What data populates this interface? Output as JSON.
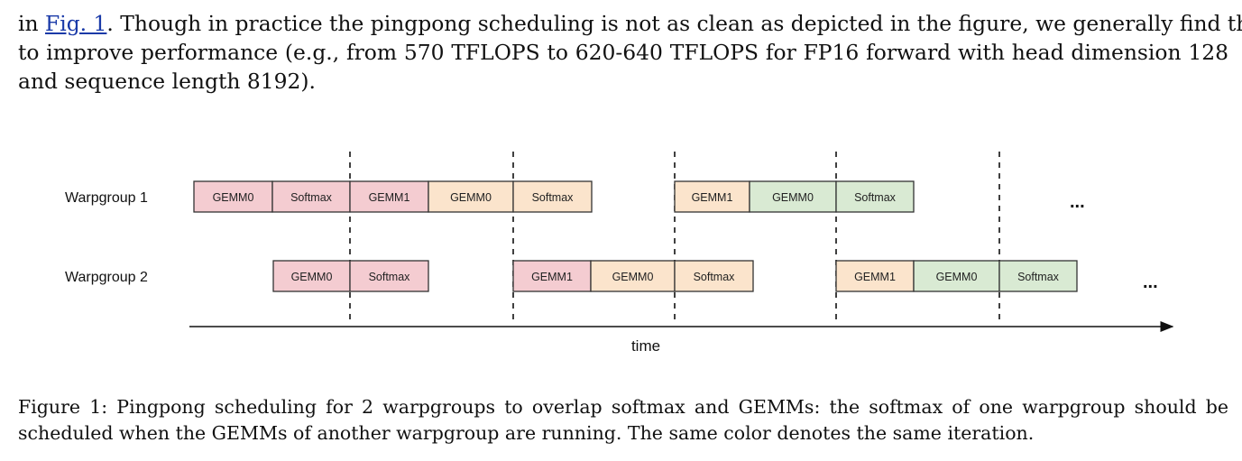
{
  "paragraph": {
    "line1_prefix": "in ",
    "line1_link": "Fig. 1",
    "line1_rest": ". Though in practice the pingpong scheduling is not as clean as depicted in the figure, we generally find this",
    "line2": "to improve performance (e.g., from 570 TFLOPS to 620-640 TFLOPS for FP16 forward with head dimension 128",
    "line3": "and sequence length 8192)."
  },
  "figure": {
    "row_labels": [
      "Warpgroup 1",
      "Warpgroup 2"
    ],
    "axis_label": "time",
    "ellipsis": "...",
    "colors": {
      "iter_a": "#f4ccd1",
      "iter_b": "#fbe4cc",
      "iter_c": "#d9ead3",
      "border": "#333333"
    },
    "row1_blocks": [
      {
        "label": "GEMM0",
        "color": "iter_a"
      },
      {
        "label": "Softmax",
        "color": "iter_a"
      },
      {
        "label": "GEMM1",
        "color": "iter_a"
      },
      {
        "label": "GEMM0",
        "color": "iter_b"
      },
      {
        "label": "Softmax",
        "color": "iter_b"
      },
      {
        "label": "GEMM1",
        "color": "iter_b"
      },
      {
        "label": "GEMM0",
        "color": "iter_c"
      },
      {
        "label": "Softmax",
        "color": "iter_c"
      }
    ],
    "row2_blocks": [
      {
        "label": "GEMM0",
        "color": "iter_a"
      },
      {
        "label": "Softmax",
        "color": "iter_a"
      },
      {
        "label": "GEMM1",
        "color": "iter_a"
      },
      {
        "label": "GEMM0",
        "color": "iter_b"
      },
      {
        "label": "Softmax",
        "color": "iter_b"
      },
      {
        "label": "GEMM1",
        "color": "iter_b"
      },
      {
        "label": "GEMM0",
        "color": "iter_c"
      },
      {
        "label": "Softmax",
        "color": "iter_c"
      }
    ]
  },
  "caption": {
    "line1": "Figure 1: Pingpong scheduling for 2 warpgroups to overlap softmax and GEMMs: the softmax of one warpgroup should be",
    "line2": "scheduled when the GEMMs of another warpgroup are running. The same color denotes the same iteration."
  }
}
